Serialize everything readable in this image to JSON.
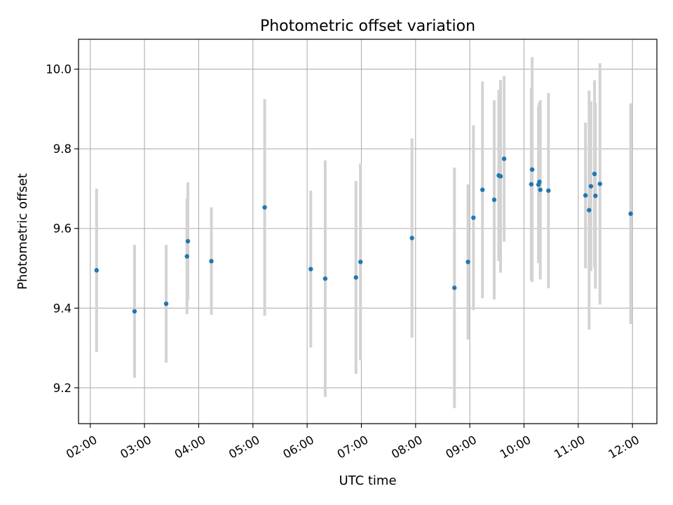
{
  "chart_data": {
    "type": "scatter",
    "title": "Photometric offset variation",
    "xlabel": "UTC time",
    "ylabel": "Photometric offset",
    "xlim": [
      "01:47",
      "12:27"
    ],
    "ylim": [
      9.11,
      10.075
    ],
    "grid": true,
    "marker_color": "#1f77b4",
    "errorbar_color": "#d3d3d3",
    "x_ticks": [
      "02:00",
      "03:00",
      "04:00",
      "05:00",
      "06:00",
      "07:00",
      "08:00",
      "09:00",
      "10:00",
      "11:00",
      "12:00"
    ],
    "y_ticks": [
      9.2,
      9.4,
      9.6,
      9.8,
      10.0
    ],
    "y_tick_labels": [
      "9.2",
      "9.4",
      "9.6",
      "9.8",
      "10.0"
    ],
    "points": [
      {
        "x": "02:07",
        "y": 9.495,
        "err": 0.205
      },
      {
        "x": "02:49",
        "y": 9.392,
        "err": 0.167
      },
      {
        "x": "03:24",
        "y": 9.411,
        "err": 0.148
      },
      {
        "x": "03:47",
        "y": 9.53,
        "err": 0.145
      },
      {
        "x": "03:48",
        "y": 9.568,
        "err": 0.148
      },
      {
        "x": "04:14",
        "y": 9.518,
        "err": 0.135
      },
      {
        "x": "05:13",
        "y": 9.653,
        "err": 0.272
      },
      {
        "x": "06:04",
        "y": 9.498,
        "err": 0.197
      },
      {
        "x": "06:20",
        "y": 9.474,
        "err": 0.297
      },
      {
        "x": "06:54",
        "y": 9.477,
        "err": 0.242
      },
      {
        "x": "06:59",
        "y": 9.516,
        "err": 0.247
      },
      {
        "x": "07:56",
        "y": 9.576,
        "err": 0.25
      },
      {
        "x": "08:43",
        "y": 9.451,
        "err": 0.302
      },
      {
        "x": "08:58",
        "y": 9.516,
        "err": 0.195
      },
      {
        "x": "09:04",
        "y": 9.627,
        "err": 0.232
      },
      {
        "x": "09:14",
        "y": 9.697,
        "err": 0.272
      },
      {
        "x": "09:27",
        "y": 9.672,
        "err": 0.25
      },
      {
        "x": "09:32",
        "y": 9.733,
        "err": 0.215
      },
      {
        "x": "09:34",
        "y": 9.731,
        "err": 0.242
      },
      {
        "x": "09:38",
        "y": 9.775,
        "err": 0.208
      },
      {
        "x": "10:08",
        "y": 9.711,
        "err": 0.242
      },
      {
        "x": "10:09",
        "y": 9.748,
        "err": 0.282
      },
      {
        "x": "10:16",
        "y": 9.71,
        "err": 0.197
      },
      {
        "x": "10:17",
        "y": 9.717,
        "err": 0.2
      },
      {
        "x": "10:18",
        "y": 9.697,
        "err": 0.225
      },
      {
        "x": "10:27",
        "y": 9.695,
        "err": 0.245
      },
      {
        "x": "11:08",
        "y": 9.683,
        "err": 0.183
      },
      {
        "x": "11:12",
        "y": 9.646,
        "err": 0.3
      },
      {
        "x": "11:14",
        "y": 9.706,
        "err": 0.213
      },
      {
        "x": "11:18",
        "y": 9.737,
        "err": 0.235
      },
      {
        "x": "11:19",
        "y": 9.682,
        "err": 0.233
      },
      {
        "x": "11:24",
        "y": 9.712,
        "err": 0.303
      },
      {
        "x": "11:58",
        "y": 9.637,
        "err": 0.277
      }
    ]
  }
}
